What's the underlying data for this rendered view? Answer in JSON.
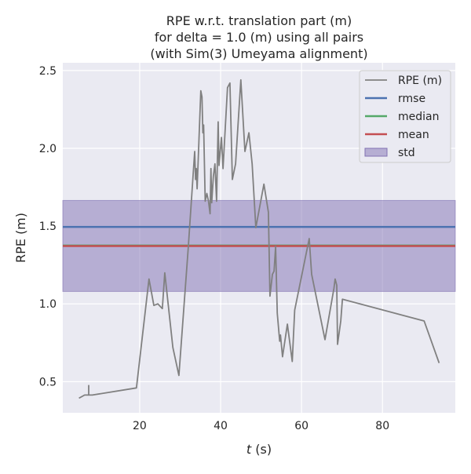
{
  "chart_data": {
    "type": "line",
    "title": [
      "RPE w.r.t. translation part (m)",
      "for delta = 1.0 (m) using all pairs",
      "(with Sim(3) Umeyama alignment)"
    ],
    "xlabel_italic": "t",
    "xlabel_rest": " (s)",
    "ylabel": "RPE (m)",
    "xlim": [
      1,
      98
    ],
    "ylim": [
      0.3,
      2.55
    ],
    "xticks": [
      20,
      40,
      60,
      80
    ],
    "yticks": [
      0.5,
      1.0,
      1.5,
      2.0,
      2.5
    ],
    "ytick_labels": [
      "0.5",
      "1.0",
      "1.5",
      "2.0",
      "2.5"
    ],
    "grid": true,
    "legend_position": "top-right",
    "legend": [
      "RPE (m)",
      "rmse",
      "median",
      "mean",
      "std"
    ],
    "colors": {
      "rpe": "#808080",
      "rmse": "#4c72b0",
      "median": "#55a868",
      "mean": "#c44e52",
      "std": "#8172b3",
      "background": "#eaeaf2"
    },
    "stats": {
      "rmse": 1.495,
      "median": 1.375,
      "mean": 1.372,
      "std_low": 1.08,
      "std_high": 1.665
    },
    "series": [
      {
        "name": "RPE (m)",
        "x": [
          5.0,
          6.4,
          7.4,
          7.4,
          7.4,
          8.3,
          19.2,
          22.3,
          23.5,
          24.5,
          25.6,
          26.2,
          28.2,
          29.7,
          32.0,
          33.6,
          33.8,
          34.0,
          34.2,
          35.1,
          35.4,
          35.6,
          35.8,
          36.2,
          36.6,
          37.0,
          37.4,
          37.6,
          37.8,
          38.2,
          38.6,
          39.0,
          39.4,
          39.6,
          40.2,
          40.6,
          41.7,
          42.3,
          42.9,
          43.7,
          45.0,
          46.0,
          47.0,
          47.8,
          48.7,
          50.7,
          51.8,
          52.2,
          52.8,
          53.2,
          53.6,
          54.0,
          54.6,
          54.8,
          55.3,
          56.5,
          57.7,
          58.3,
          61.9,
          62.5,
          65.8,
          68.0,
          68.3,
          68.7,
          68.9,
          69.7,
          70.1,
          90.3,
          94.0
        ],
        "y": [
          0.394,
          0.414,
          0.414,
          0.475,
          0.414,
          0.414,
          0.46,
          1.16,
          0.99,
          1.0,
          0.97,
          1.2,
          0.72,
          0.54,
          1.36,
          1.98,
          1.8,
          1.87,
          1.74,
          2.37,
          2.33,
          2.1,
          2.15,
          1.66,
          1.71,
          1.66,
          1.58,
          1.87,
          1.65,
          1.82,
          1.9,
          1.66,
          2.17,
          1.89,
          2.07,
          1.87,
          2.39,
          2.42,
          1.8,
          1.9,
          2.44,
          1.98,
          2.1,
          1.9,
          1.49,
          1.77,
          1.59,
          1.05,
          1.19,
          1.21,
          1.37,
          0.94,
          0.76,
          0.8,
          0.66,
          0.87,
          0.63,
          0.96,
          1.42,
          1.19,
          0.77,
          1.1,
          1.16,
          1.12,
          0.74,
          0.89,
          1.03,
          0.89,
          0.62
        ]
      }
    ]
  }
}
